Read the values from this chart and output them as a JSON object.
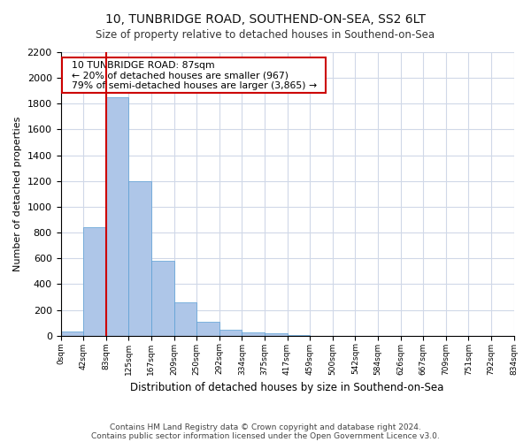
{
  "title_line1": "10, TUNBRIDGE ROAD, SOUTHEND-ON-SEA, SS2 6LT",
  "title_line2": "Size of property relative to detached houses in Southend-on-Sea",
  "xlabel": "Distribution of detached houses by size in Southend-on-Sea",
  "ylabel": "Number of detached properties",
  "footer_line1": "Contains HM Land Registry data © Crown copyright and database right 2024.",
  "footer_line2": "Contains public sector information licensed under the Open Government Licence v3.0.",
  "annotation_line1": "10 TUNBRIDGE ROAD: 87sqm",
  "annotation_line2": "← 20% of detached houses are smaller (967)",
  "annotation_line3": "79% of semi-detached houses are larger (3,865) →",
  "bar_values": [
    30,
    840,
    1850,
    1200,
    580,
    255,
    110,
    45,
    25,
    15,
    5,
    0,
    0,
    0,
    0,
    0,
    0,
    0,
    0
  ],
  "tick_labels": [
    "0sqm",
    "42sqm",
    "83sqm",
    "125sqm",
    "167sqm",
    "209sqm",
    "250sqm",
    "292sqm",
    "334sqm",
    "375sqm",
    "417sqm",
    "459sqm",
    "500sqm",
    "542sqm",
    "584sqm",
    "626sqm",
    "667sqm",
    "709sqm",
    "751sqm",
    "792sqm",
    "834sqm"
  ],
  "bar_color": "#aec6e8",
  "bar_edge_color": "#5a9fd4",
  "vline_x": 2,
  "vline_color": "#cc0000",
  "annotation_box_color": "#cc0000",
  "background_color": "#ffffff",
  "grid_color": "#d0d8e8",
  "ylim": [
    0,
    2200
  ],
  "yticks": [
    0,
    200,
    400,
    600,
    800,
    1000,
    1200,
    1400,
    1600,
    1800,
    2000,
    2200
  ]
}
